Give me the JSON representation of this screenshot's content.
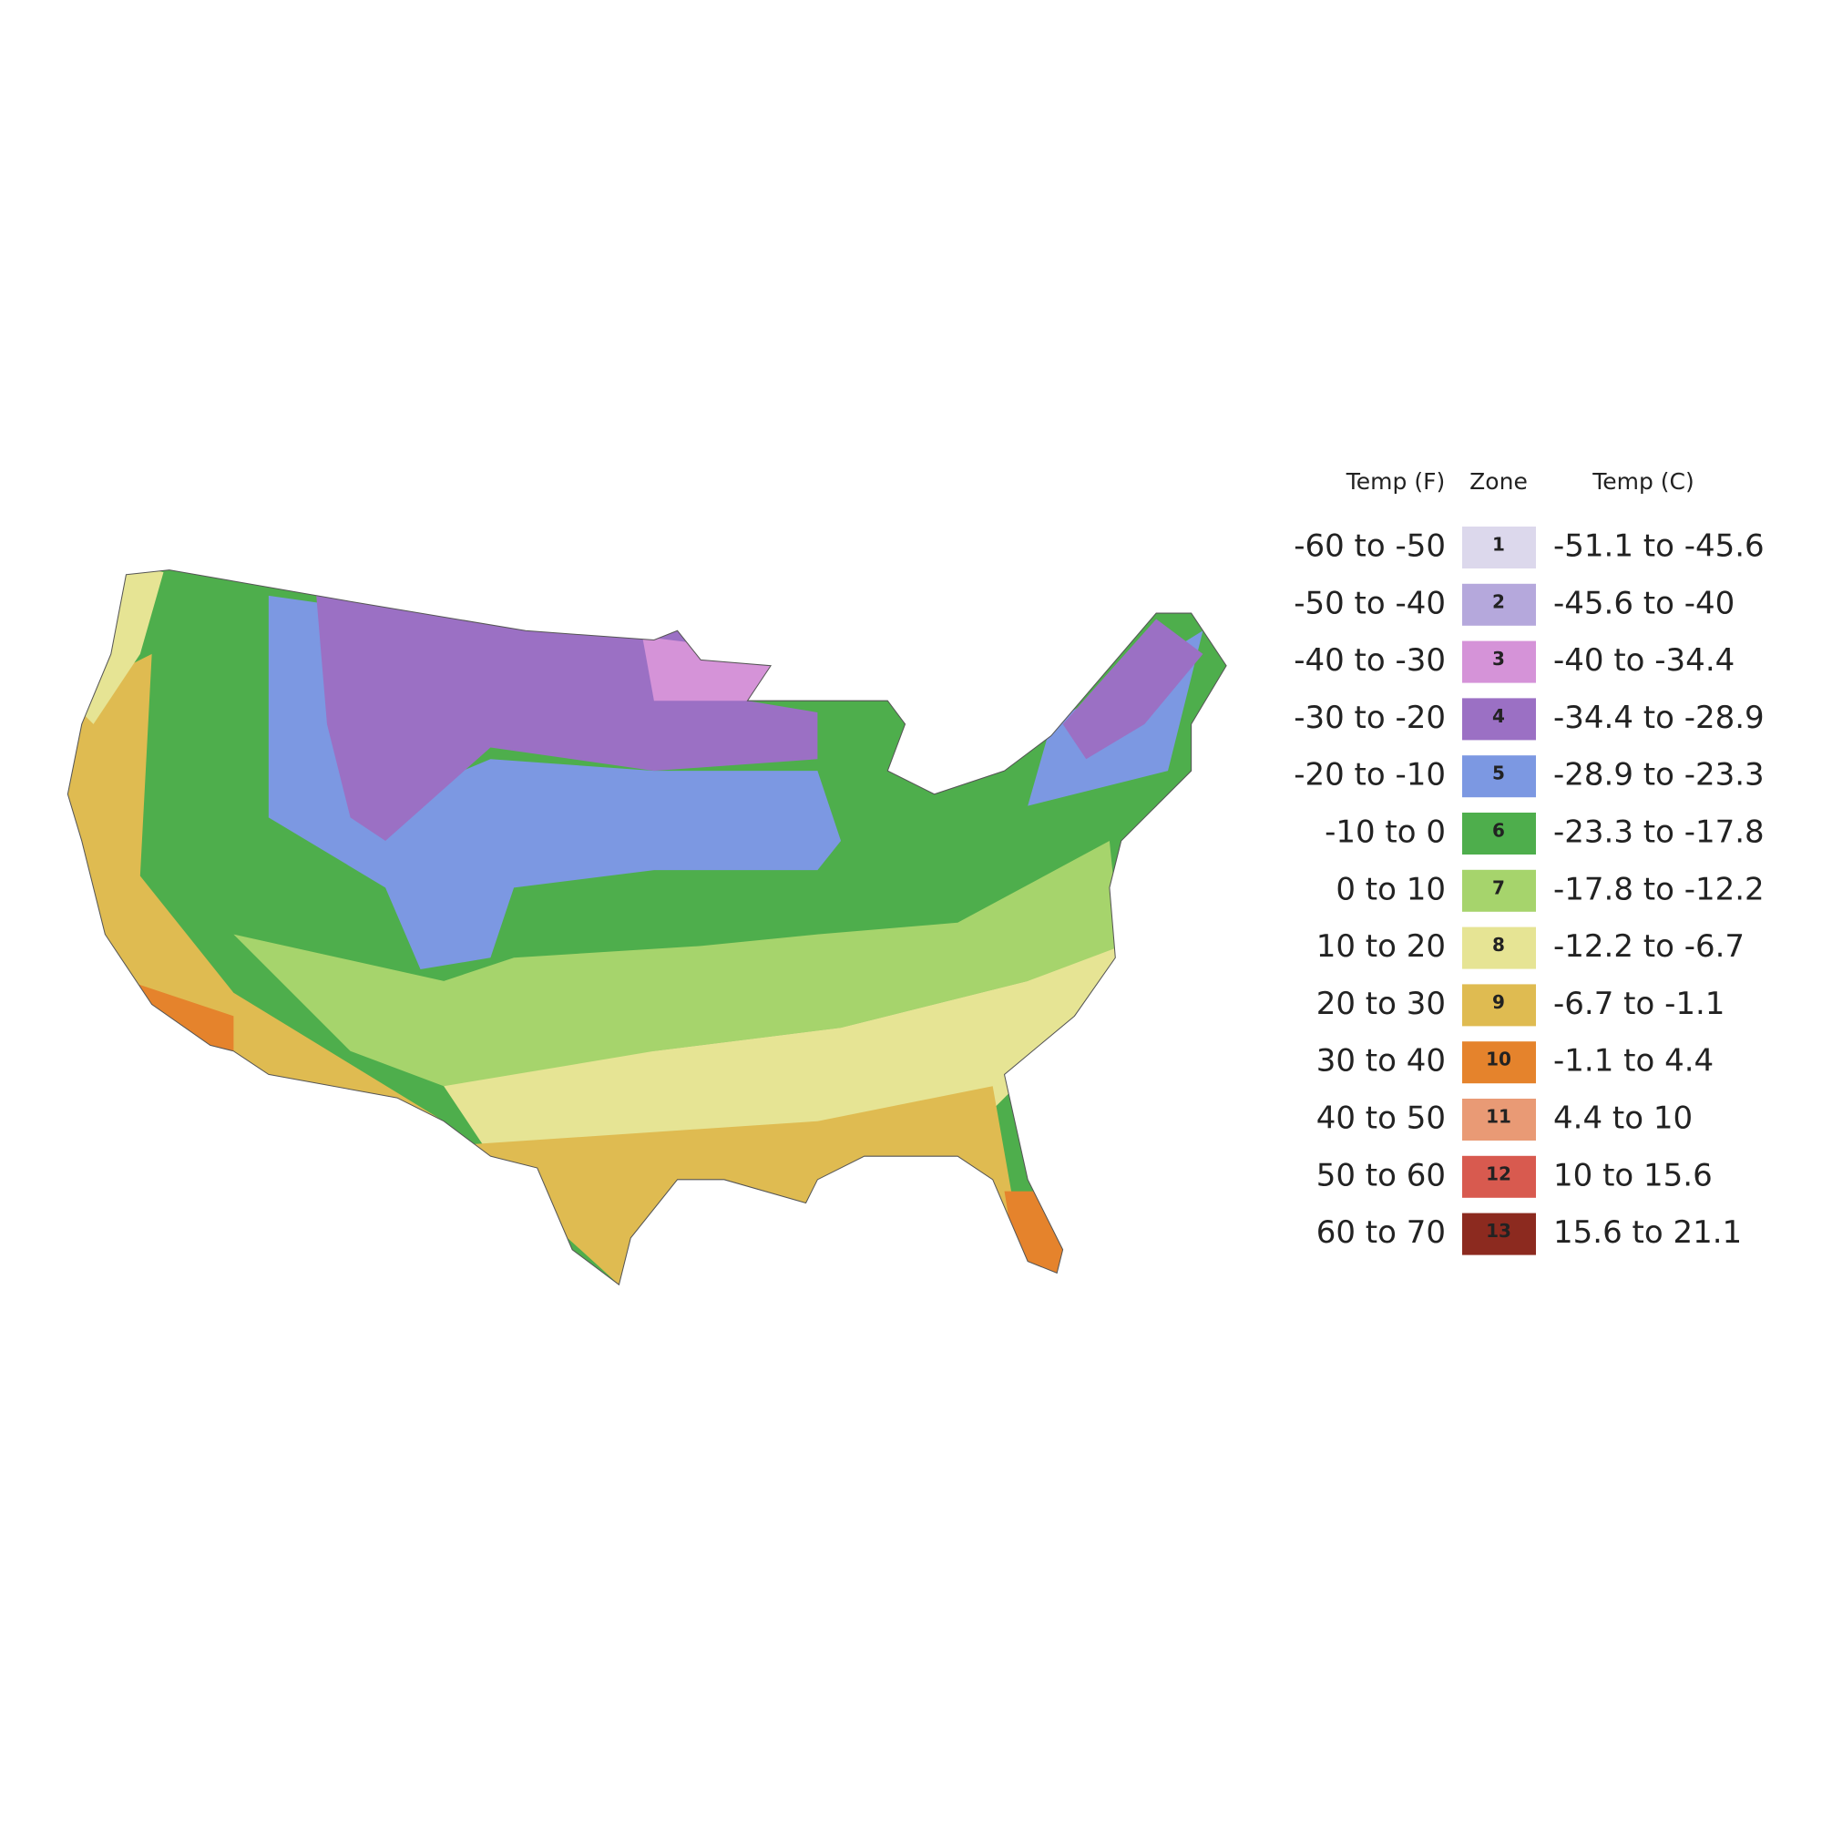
{
  "legend": {
    "headers": [
      "Temp (F)",
      "Zone",
      "Temp (C)"
    ],
    "rows": [
      {
        "temp_f": "-60 to -50",
        "zone": "1",
        "temp_c": "-51.1 to -45.6",
        "color": "#dcd8ec"
      },
      {
        "temp_f": "-50 to -40",
        "zone": "2",
        "temp_c": "-45.6 to -40",
        "color": "#b5a8dc"
      },
      {
        "temp_f": "-40 to -30",
        "zone": "3",
        "temp_c": "-40 to -34.4",
        "color": "#d593d8"
      },
      {
        "temp_f": "-30 to -20",
        "zone": "4",
        "temp_c": "-34.4 to -28.9",
        "color": "#9b70c4"
      },
      {
        "temp_f": "-20 to -10",
        "zone": "5",
        "temp_c": "-28.9 to -23.3",
        "color": "#7c98e2"
      },
      {
        "temp_f": "-10 to 0",
        "zone": "6",
        "temp_c": "-23.3 to -17.8",
        "color": "#4eae4c"
      },
      {
        "temp_f": "0 to 10",
        "zone": "7",
        "temp_c": "-17.8 to -12.2",
        "color": "#a6d46c"
      },
      {
        "temp_f": "10 to 20",
        "zone": "8",
        "temp_c": "-12.2 to -6.7",
        "color": "#e6e494"
      },
      {
        "temp_f": "20 to 30",
        "zone": "9",
        "temp_c": "-6.7 to -1.1",
        "color": "#dfbb51"
      },
      {
        "temp_f": "30 to 40",
        "zone": "10",
        "temp_c": "-1.1 to 4.4",
        "color": "#e5832c"
      },
      {
        "temp_f": "40 to 50",
        "zone": "11",
        "temp_c": "4.4 to 10",
        "color": "#e99a75"
      },
      {
        "temp_f": "50 to 60",
        "zone": "12",
        "temp_c": "10 to 15.6",
        "color": "#d85a4f"
      },
      {
        "temp_f": "60 to 70",
        "zone": "13",
        "temp_c": "15.6 to 21.1",
        "color": "#8c2a1f"
      }
    ]
  }
}
